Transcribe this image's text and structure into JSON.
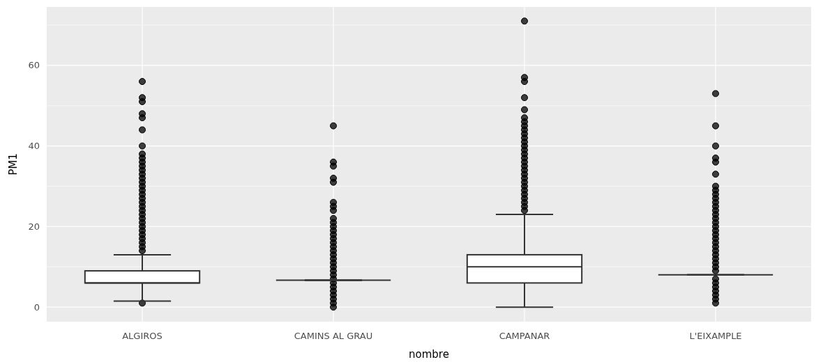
{
  "chart_data": {
    "type": "box",
    "xlabel": "nombre",
    "ylabel": "PM1",
    "categories": [
      "ALGIROS",
      "CAMINS AL GRAU",
      "CAMPANAR",
      "L'EIXAMPLE"
    ],
    "ylim": [
      -3.6,
      74.5
    ],
    "yticks": [
      0,
      {
        "value": 10,
        "label": null
      },
      20,
      {
        "value": 30,
        "label": null
      },
      40,
      {
        "value": 50,
        "label": null
      },
      60,
      {
        "value": 70,
        "label": null
      }
    ],
    "grid": true,
    "boxes": [
      {
        "low": 1.5,
        "q1": 6,
        "median": 6,
        "q3": 9,
        "high": 13,
        "outliers": [
          1,
          14,
          15,
          16,
          17,
          18,
          19,
          20,
          21,
          22,
          23,
          24,
          25,
          26,
          27,
          28,
          29,
          30,
          31,
          32,
          33,
          34,
          35,
          36,
          37,
          38,
          40,
          44,
          47,
          48,
          51,
          52,
          56
        ]
      },
      {
        "low": 6.7,
        "q1": 6.7,
        "median": 6.7,
        "q3": 6.7,
        "high": 6.7,
        "outliers": [
          0,
          1,
          2,
          3,
          4,
          5,
          6,
          7,
          8,
          9,
          10,
          11,
          12,
          13,
          14,
          15,
          16,
          17,
          18,
          19,
          20,
          21,
          22,
          24,
          25,
          26,
          31,
          32,
          35,
          36,
          45
        ]
      },
      {
        "low": 0,
        "q1": 6,
        "median": 10,
        "q3": 13,
        "high": 23,
        "outliers": [
          24,
          25,
          26,
          27,
          28,
          29,
          30,
          31,
          32,
          33,
          34,
          35,
          36,
          37,
          38,
          39,
          40,
          41,
          42,
          43,
          44,
          45,
          46,
          47,
          49,
          52,
          56,
          57,
          71
        ]
      },
      {
        "low": 8,
        "q1": 8,
        "median": 8,
        "q3": 8,
        "high": 8,
        "outliers": [
          1,
          2,
          3,
          4,
          5,
          6,
          7,
          9,
          10,
          11,
          12,
          13,
          14,
          15,
          16,
          17,
          18,
          19,
          20,
          21,
          22,
          23,
          24,
          25,
          26,
          27,
          28,
          29,
          30,
          33,
          36,
          37,
          40,
          45,
          53
        ]
      }
    ]
  }
}
